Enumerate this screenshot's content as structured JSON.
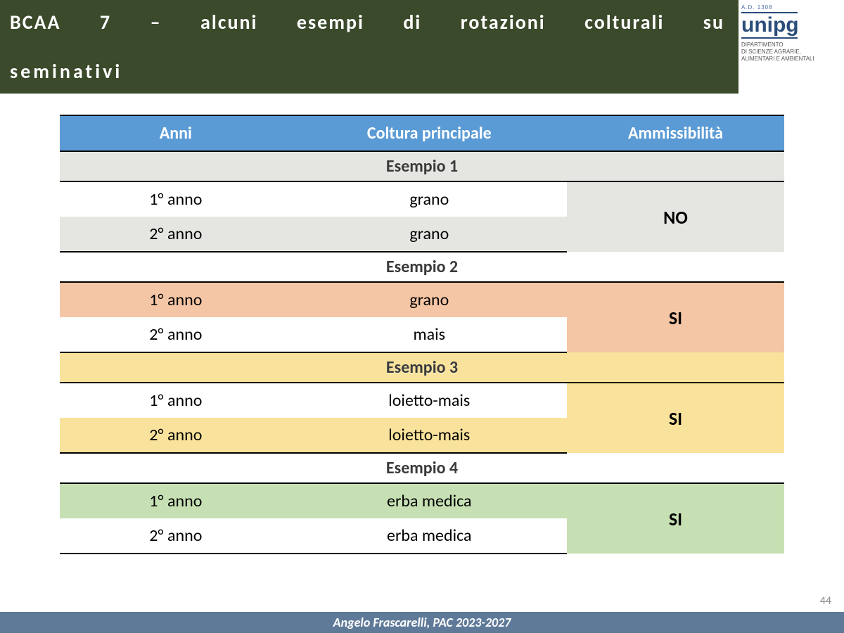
{
  "title_line1": "BCAA 7 – alcuni esempi di rotazioni colturali su",
  "title_line2": "seminativi",
  "logo": {
    "ad": "A.D. 1308",
    "name": "unipg",
    "tagline": "DIPARTIMENTO\nDI SCIENZE AGRARIE,\nALIMENTARI E AMBIENTALI"
  },
  "columns": {
    "anni": "Anni",
    "coltura": "Coltura principale",
    "amm": "Ammissibilità"
  },
  "examples": [
    {
      "label": "Esempio 1",
      "label_bg": "#e5e5e1",
      "alt_bg": "#e5e5e1",
      "amm_bg": "#e5e5e1",
      "ammissibilita": "NO",
      "rows": [
        {
          "anno": "1° anno",
          "coltura": "grano",
          "alt": false
        },
        {
          "anno": "2° anno",
          "coltura": "grano",
          "alt": true
        }
      ]
    },
    {
      "label": "Esempio 2",
      "label_bg": "#ffffff",
      "alt_bg": "#f5c6a5",
      "amm_bg": "#f5c6a5",
      "ammissibilita": "SI",
      "rows": [
        {
          "anno": "1° anno",
          "coltura": "grano",
          "alt": true
        },
        {
          "anno": "2° anno",
          "coltura": "mais",
          "alt": false
        }
      ]
    },
    {
      "label": "Esempio 3",
      "label_bg": "#f9e29b",
      "alt_bg": "#f9e29b",
      "amm_bg": "#f9e29b",
      "ammissibilita": "SI",
      "rows": [
        {
          "anno": "1° anno",
          "coltura": "loietto-mais",
          "alt": false
        },
        {
          "anno": "2° anno",
          "coltura": "loietto-mais",
          "alt": true
        }
      ]
    },
    {
      "label": "Esempio 4",
      "label_bg": "#ffffff",
      "alt_bg": "#c6e0b4",
      "amm_bg": "#c6e0b4",
      "ammissibilita": "SI",
      "rows": [
        {
          "anno": "1° anno",
          "coltura": "erba medica",
          "alt": true
        },
        {
          "anno": "2° anno",
          "coltura": "erba medica",
          "alt": false
        }
      ]
    }
  ],
  "footer": "Angelo Frascarelli, PAC 2023-2027",
  "page_number": "44",
  "colors": {
    "title_bg": "#3b4a2b",
    "header_bg": "#5b9bd5",
    "footer_bg": "#5f7a99"
  }
}
